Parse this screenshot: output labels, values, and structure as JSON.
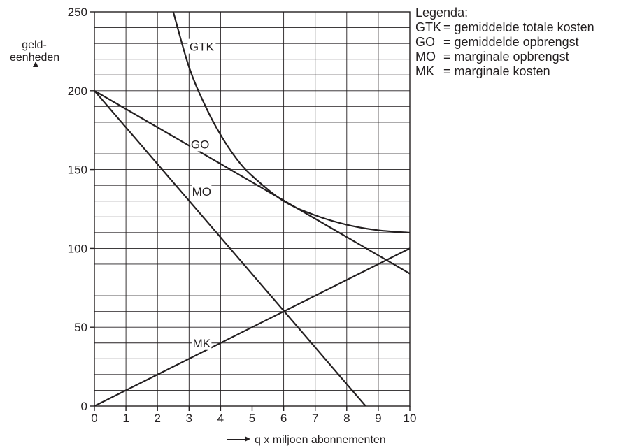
{
  "chart_data": {
    "type": "line",
    "xlabel": "q x miljoen abonnementen",
    "ylabel": [
      "geld-",
      "eenheden"
    ],
    "xlim": [
      0,
      10
    ],
    "ylim": [
      0,
      250
    ],
    "x_ticks": [
      0,
      1,
      2,
      3,
      4,
      5,
      6,
      7,
      8,
      9,
      10
    ],
    "y_ticks": [
      0,
      50,
      100,
      150,
      200,
      250
    ],
    "grid": true,
    "series": [
      {
        "name": "GTK",
        "points": [
          [
            2.5,
            250
          ],
          [
            3,
            215
          ],
          [
            3.5,
            191
          ],
          [
            4,
            172
          ],
          [
            4.5,
            157
          ],
          [
            5,
            146
          ],
          [
            6,
            130
          ],
          [
            7,
            121
          ],
          [
            8,
            115
          ],
          [
            9,
            111.5
          ],
          [
            10,
            110
          ]
        ]
      },
      {
        "name": "GO",
        "points": [
          [
            0,
            200
          ],
          [
            10,
            84
          ]
        ]
      },
      {
        "name": "MO",
        "points": [
          [
            0,
            200
          ],
          [
            8.6,
            0
          ]
        ]
      },
      {
        "name": "MK",
        "points": [
          [
            0,
            0
          ],
          [
            10,
            100
          ]
        ]
      }
    ],
    "legend": {
      "title": "Legenda:",
      "items": [
        {
          "abbr": "GTK",
          "text": "= gemiddelde totale kosten"
        },
        {
          "abbr": "GO",
          "text": "= gemiddelde opbrengst"
        },
        {
          "abbr": "MO",
          "text": "= marginale opbrengst"
        },
        {
          "abbr": "MK",
          "text": "= marginale kosten"
        }
      ]
    }
  }
}
